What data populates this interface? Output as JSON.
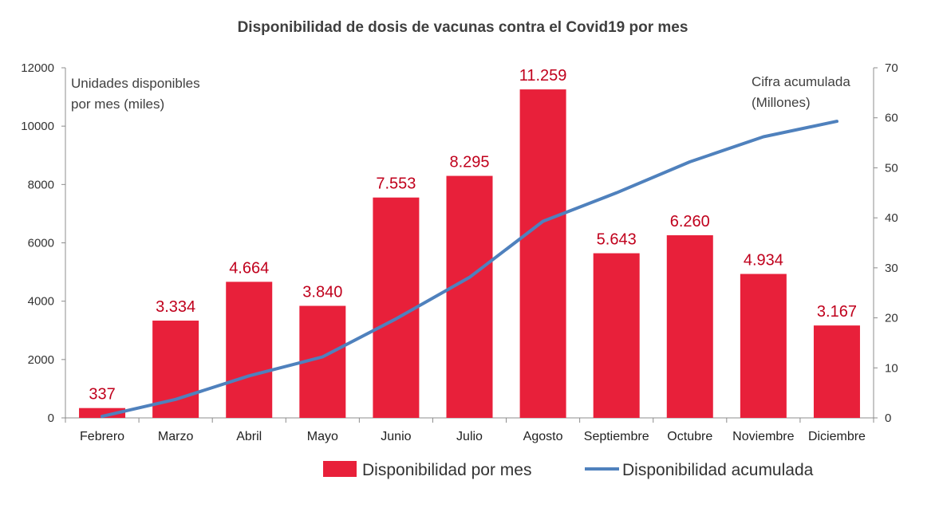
{
  "chart_data": {
    "type": "bar",
    "title": "Disponibilidad de dosis de vacunas contra el Covid19 por mes",
    "categories": [
      "Febrero",
      "Marzo",
      "Abril",
      "Mayo",
      "Junio",
      "Julio",
      "Agosto",
      "Septiembre",
      "Octubre",
      "Noviembre",
      "Diciembre"
    ],
    "left_axis_label": [
      "Unidades disponibles",
      "por mes (miles)"
    ],
    "right_axis_label": [
      "Cifra acumulada",
      "(Millones)"
    ],
    "ylim_left": [
      0,
      12000
    ],
    "ylim_right": [
      0,
      70
    ],
    "yticks_left": [
      "0",
      "2000",
      "4000",
      "6000",
      "8000",
      "10000",
      "12000"
    ],
    "yticks_right": [
      "0",
      "10",
      "20",
      "30",
      "40",
      "50",
      "60",
      "70"
    ],
    "grid": false,
    "legend_position": "bottom",
    "series": [
      {
        "name": "Disponibilidad por mes",
        "type": "bar",
        "axis": "left",
        "color": "#e8203a",
        "label_color": "#c0001c",
        "values": [
          337,
          3334,
          4664,
          3840,
          7553,
          8295,
          11259,
          5643,
          6260,
          4934,
          3167
        ],
        "labels": [
          "337",
          "3.334",
          "4.664",
          "3.840",
          "7.553",
          "8.295",
          "11.259",
          "5.643",
          "6.260",
          "4.934",
          "3.167"
        ]
      },
      {
        "name": "Disponibilidad acumulada",
        "type": "line",
        "axis": "right",
        "color": "#4f81bd",
        "values": [
          0.3,
          3.7,
          8.4,
          12.2,
          19.8,
          28.1,
          39.3,
          45.0,
          51.2,
          56.2,
          59.3
        ]
      }
    ]
  }
}
